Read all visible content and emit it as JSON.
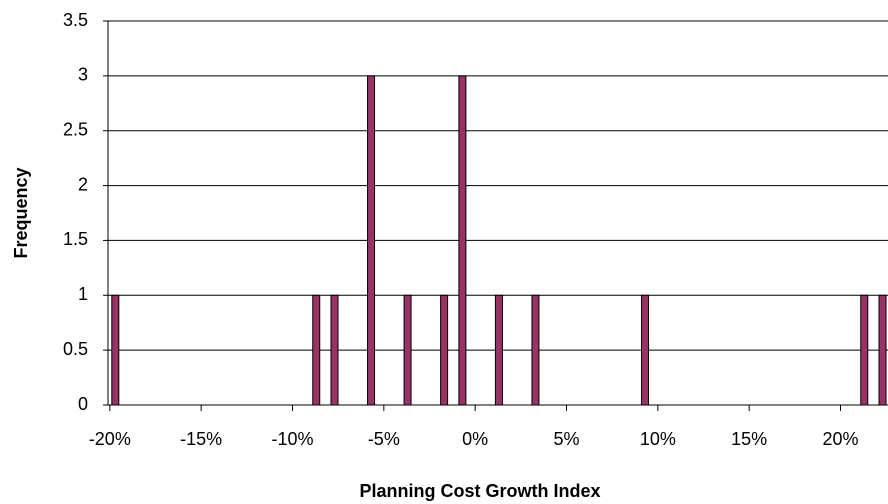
{
  "chart_data": {
    "type": "bar",
    "x_label": "Planning Cost Growth Index",
    "y_label": "Frequency",
    "x": [
      -19.7,
      -8.7,
      -7.7,
      -5.7,
      -3.7,
      -1.7,
      -0.7,
      1.3,
      3.3,
      9.3,
      21.3,
      22.3
    ],
    "values": [
      1,
      1,
      1,
      3,
      1,
      1,
      3,
      1,
      1,
      1,
      1,
      1
    ],
    "color": "#993366",
    "xlim": [
      -20.1,
      22.6
    ],
    "xticks": [
      {
        "value": -20,
        "label": "-20%"
      },
      {
        "value": -15,
        "label": "-15%"
      },
      {
        "value": -10,
        "label": "-10%"
      },
      {
        "value": -5,
        "label": "-5%"
      },
      {
        "value": 0,
        "label": "0%"
      },
      {
        "value": 5,
        "label": "5%"
      },
      {
        "value": 10,
        "label": "10%"
      },
      {
        "value": 15,
        "label": "15%"
      },
      {
        "value": 20,
        "label": "20%"
      }
    ],
    "ylim": [
      0,
      3.5
    ],
    "yticks": [
      0,
      0.5,
      1,
      1.5,
      2,
      2.5,
      3,
      3.5
    ],
    "grid": true
  }
}
